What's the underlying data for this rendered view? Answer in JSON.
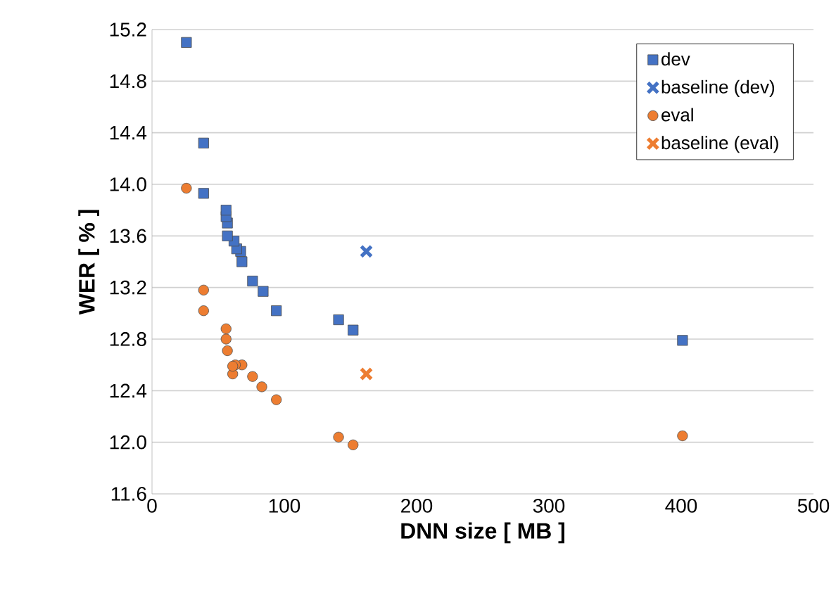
{
  "chart_data": {
    "type": "scatter",
    "xlabel": "DNN size [ MB ]",
    "ylabel": "WER [ % ]",
    "xlim": [
      0,
      500
    ],
    "xticks": [
      0,
      100,
      200,
      300,
      400,
      500
    ],
    "ylim": [
      11.6,
      15.2
    ],
    "yticks": [
      {
        "value": 11.6,
        "label": "11.6"
      },
      {
        "value": 12.0,
        "label": "12.0"
      },
      {
        "value": 12.4,
        "label": "12.4"
      },
      {
        "value": 12.8,
        "label": "12.8"
      },
      {
        "value": 13.2,
        "label": "13.2"
      },
      {
        "value": 13.6,
        "label": "13.6"
      },
      {
        "value": 14.0,
        "label": "14.0"
      },
      {
        "value": 14.4,
        "label": "14.4"
      },
      {
        "value": 14.8,
        "label": "14.8"
      },
      {
        "value": 15.2,
        "label": "15.2"
      }
    ],
    "grid": "y",
    "legend": "top right",
    "series": [
      {
        "name": "dev",
        "color": "#4472c4",
        "marker": "square",
        "x": [
          26,
          39,
          39,
          56,
          56,
          57,
          57,
          62,
          64,
          67,
          68,
          76,
          84,
          94,
          141,
          152,
          401
        ],
        "values": [
          15.1,
          14.32,
          13.93,
          13.8,
          13.75,
          13.7,
          13.6,
          13.56,
          13.5,
          13.48,
          13.4,
          13.25,
          13.17,
          13.02,
          12.95,
          12.87,
          12.79
        ]
      },
      {
        "name": "baseline (dev)",
        "color": "#4472c4",
        "marker": "cross",
        "x": [
          162
        ],
        "values": [
          13.48
        ]
      },
      {
        "name": "eval",
        "color": "#ed7d31",
        "marker": "circle",
        "x": [
          26,
          39,
          39,
          56,
          56,
          57,
          61,
          61,
          63,
          68,
          76,
          83,
          94,
          141,
          152,
          401
        ],
        "values": [
          13.97,
          13.18,
          13.02,
          12.88,
          12.8,
          12.71,
          12.59,
          12.53,
          12.6,
          12.6,
          12.51,
          12.43,
          12.33,
          12.04,
          11.98,
          12.05
        ]
      },
      {
        "name": "baseline (eval)",
        "color": "#ed7d31",
        "marker": "cross",
        "x": [
          162
        ],
        "values": [
          12.53
        ]
      }
    ]
  }
}
